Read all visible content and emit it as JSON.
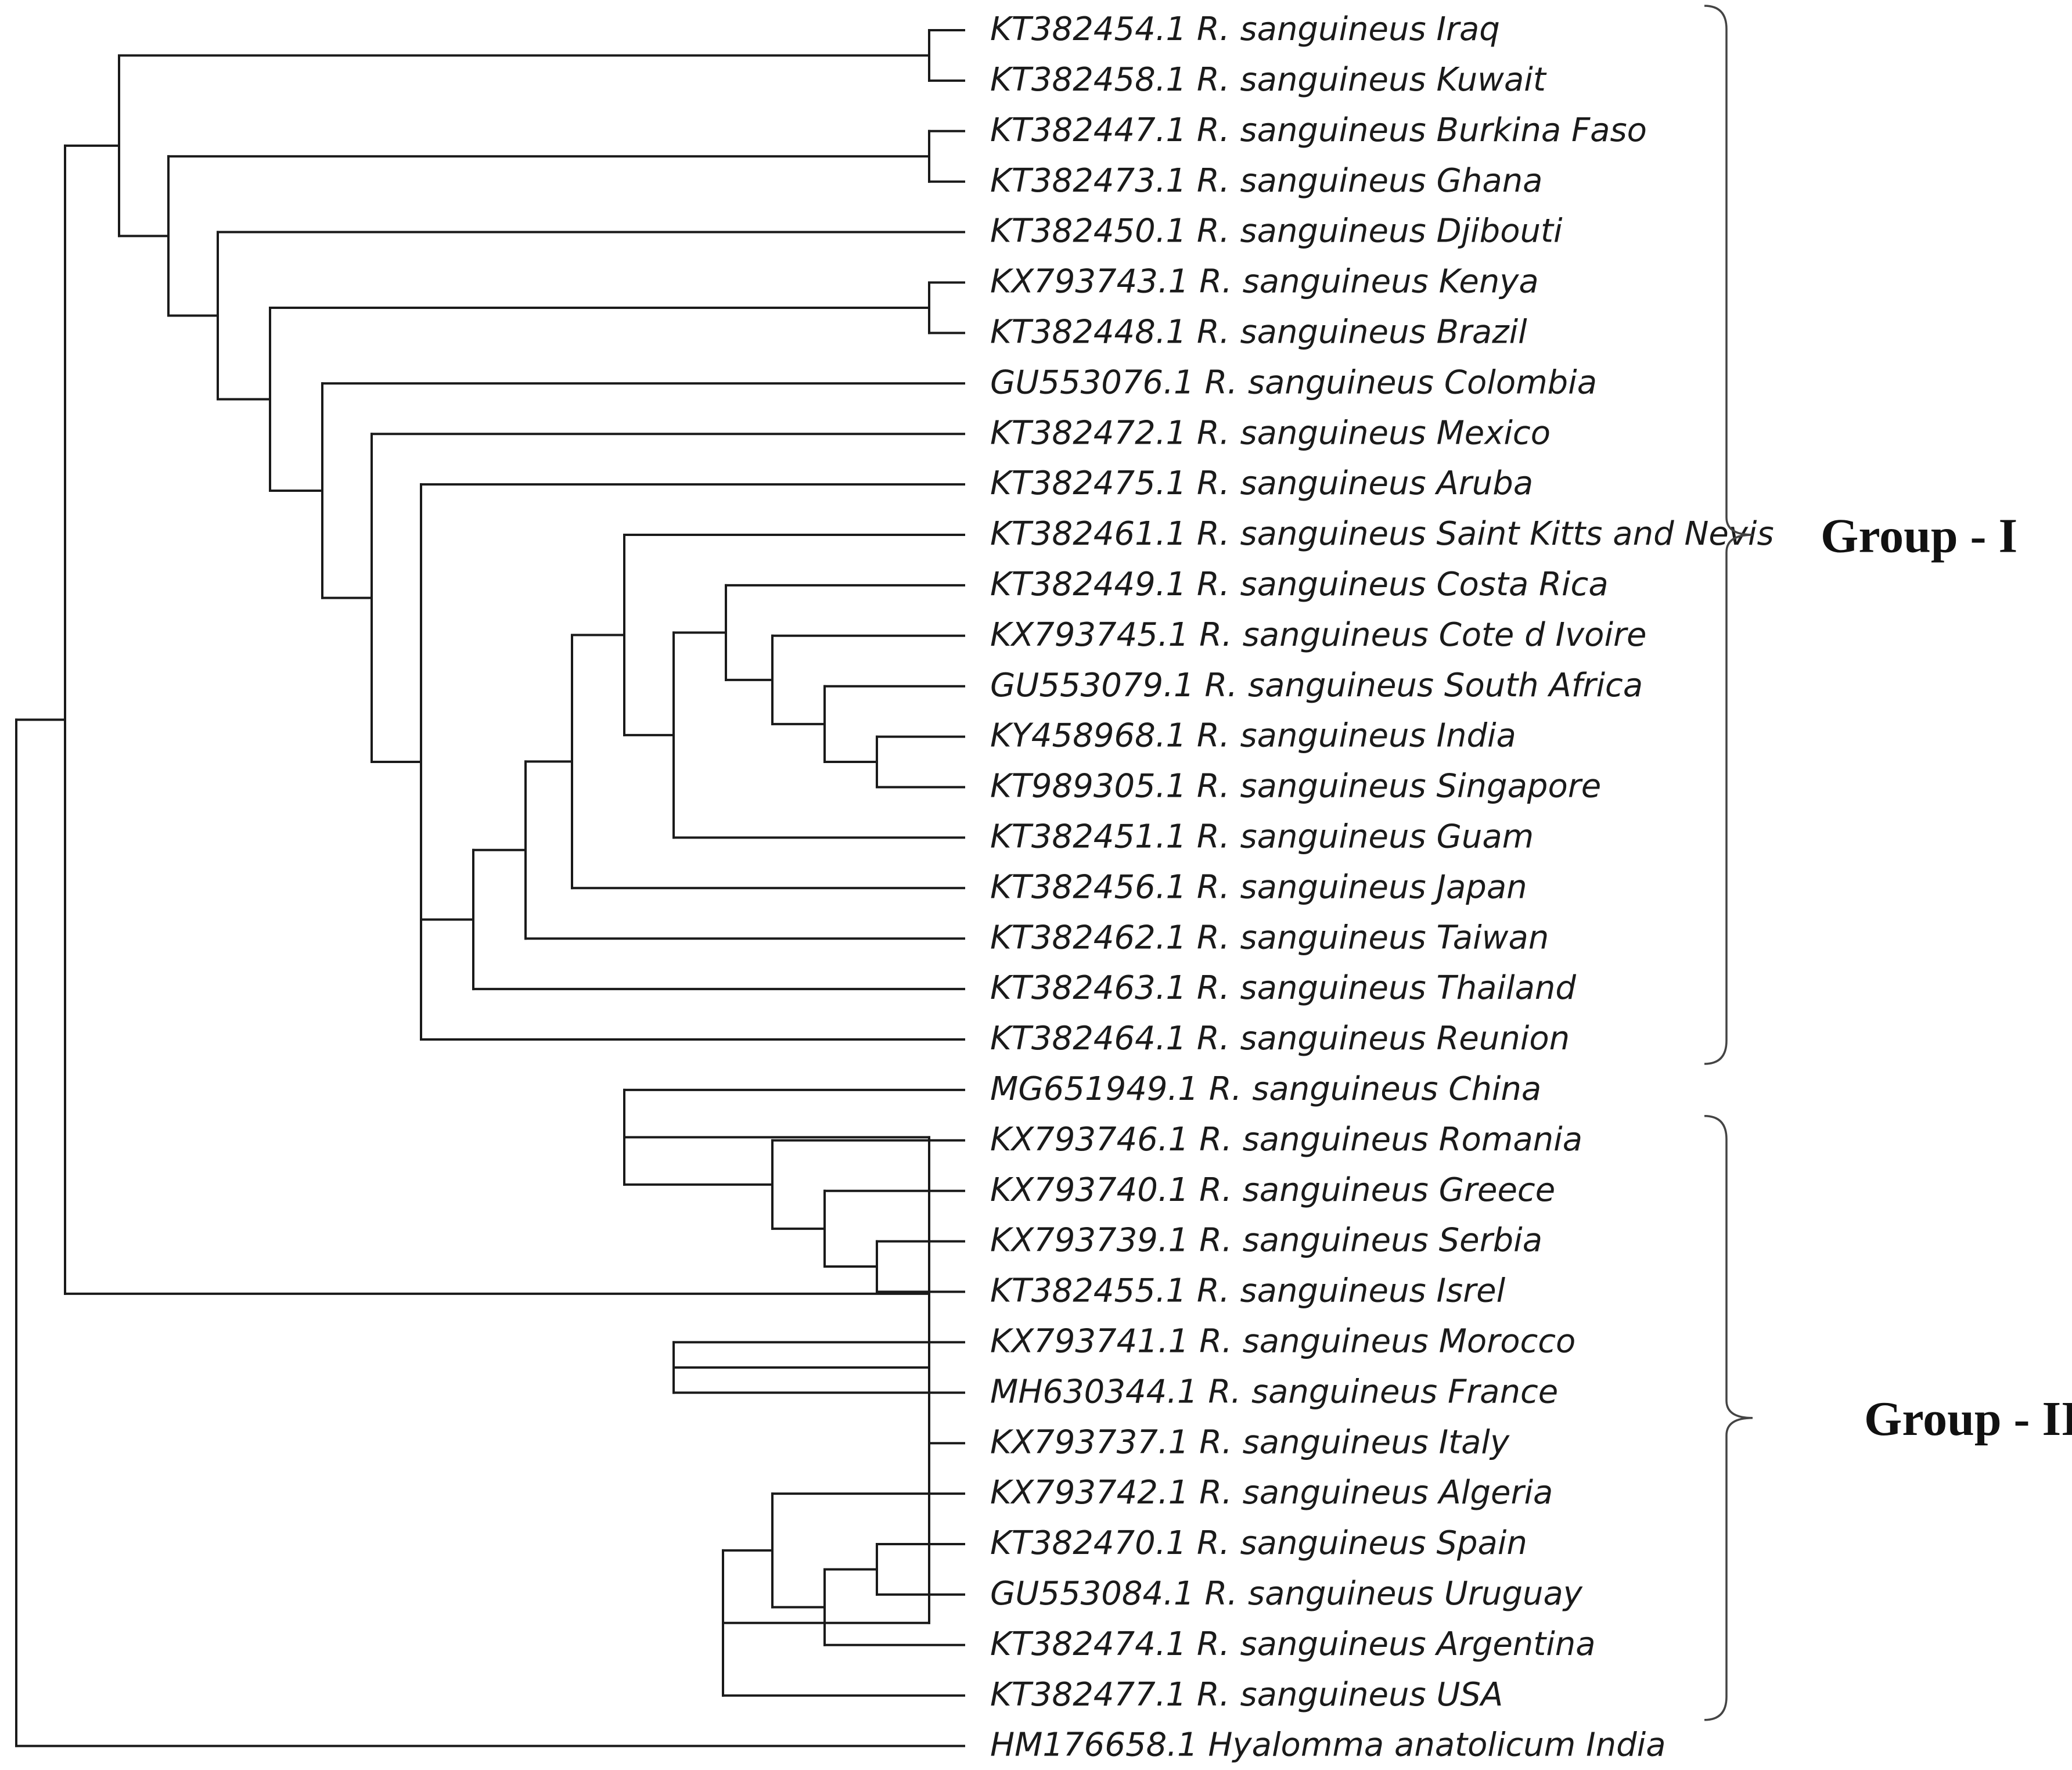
{
  "figure": {
    "type": "phylogenetic-tree",
    "taxa": [
      "KT382454.1 R. sanguineus Iraq",
      "KT382458.1 R. sanguineus Kuwait",
      "KT382447.1 R. sanguineus Burkina Faso",
      "KT382473.1 R. sanguineus Ghana",
      "KT382450.1 R. sanguineus Djibouti",
      "KX793743.1 R. sanguineus Kenya",
      "KT382448.1 R. sanguineus Brazil",
      "GU553076.1 R. sanguineus Colombia",
      "KT382472.1 R. sanguineus Mexico",
      "KT382475.1 R. sanguineus Aruba",
      "KT382461.1 R. sanguineus Saint Kitts and Nevis",
      "KT382449.1 R. sanguineus Costa Rica",
      "KX793745.1 R. sanguineus Cote d Ivoire",
      "GU553079.1 R. sanguineus South Africa",
      "KY458968.1 R. sanguineus India",
      "KT989305.1 R. sanguineus Singapore",
      "KT382451.1 R. sanguineus Guam",
      "KT382456.1 R. sanguineus Japan",
      "KT382462.1 R. sanguineus Taiwan",
      "KT382463.1 R. sanguineus Thailand",
      "KT382464.1 R. sanguineus Reunion",
      "MG651949.1 R. sanguineus China",
      "KX793746.1 R. sanguineus Romania",
      "KX793740.1 R. sanguineus Greece",
      "KX793739.1 R. sanguineus Serbia",
      "KT382455.1 R. sanguineus Isrel",
      "KX793741.1 R. sanguineus Morocco",
      "MH630344.1 R. sanguineus France",
      "KX793737.1 R. sanguineus Italy",
      "KX793742.1 R. sanguineus Algeria",
      "KT382470.1 R. sanguineus Spain",
      "GU553084.1 R. sanguineus Uruguay",
      "KT382474.1 R. sanguineus Argentina",
      "KT382477.1 R. sanguineus USA",
      "HM176658.1 Hyalomma anatolicum India"
    ],
    "groups": [
      {
        "label": "Group - I",
        "first_taxon": 0,
        "last_taxon": 20
      },
      {
        "label": "Group - II",
        "first_taxon": 22,
        "last_taxon": 33
      }
    ],
    "topology": {
      "children": [
        {
          "children": [
            {
              "children": [
                {
                  "children": [
                    {
                      "leaf": 0
                    },
                    {
                      "leaf": 1
                    }
                  ]
                },
                {
                  "children": [
                    {
                      "children": [
                        {
                          "leaf": 2
                        },
                        {
                          "leaf": 3
                        }
                      ]
                    },
                    {
                      "children": [
                        {
                          "leaf": 4
                        },
                        {
                          "children": [
                            {
                              "children": [
                                {
                                  "leaf": 5
                                },
                                {
                                  "leaf": 6
                                }
                              ]
                            },
                            {
                              "children": [
                                {
                                  "leaf": 7
                                },
                                {
                                  "children": [
                                    {
                                      "leaf": 8
                                    },
                                    {
                                      "children": [
                                        {
                                          "leaf": 9
                                        },
                                        {
                                          "children": [
                                            {
                                              "children": [
                                                {
                                                  "children": [
                                                    {
                                                      "children": [
                                                        {
                                                          "leaf": 10
                                                        },
                                                        {
                                                          "children": [
                                                            {
                                                              "children": [
                                                                {
                                                                  "leaf": 11
                                                                },
                                                                {
                                                                  "children": [
                                                                    {
                                                                      "leaf": 12
                                                                    },
                                                                    {
                                                                      "children": [
                                                                        {
                                                                          "leaf": 13
                                                                        },
                                                                        {
                                                                          "children": [
                                                                            {
                                                                              "leaf": 14
                                                                            },
                                                                            {
                                                                              "leaf": 15
                                                                            }
                                                                          ]
                                                                        }
                                                                      ]
                                                                    }
                                                                  ]
                                                                }
                                                              ]
                                                            },
                                                            {
                                                              "leaf": 16
                                                            }
                                                          ]
                                                        }
                                                      ]
                                                    },
                                                    {
                                                      "leaf": 17
                                                    }
                                                  ]
                                                },
                                                {
                                                  "leaf": 18
                                                }
                                              ]
                                            },
                                            {
                                              "leaf": 19
                                            }
                                          ]
                                        },
                                        {
                                          "leaf": 20
                                        }
                                      ]
                                    }
                                  ]
                                }
                              ]
                            }
                          ]
                        }
                      ]
                    }
                  ]
                }
              ]
            },
            {
              "children": [
                {
                  "children": [
                    {
                      "leaf": 21
                    },
                    {
                      "children": [
                        {
                          "leaf": 22
                        },
                        {
                          "children": [
                            {
                              "leaf": 23
                            },
                            {
                              "children": [
                                {
                                  "leaf": 24
                                },
                                {
                                  "leaf": 25
                                }
                              ]
                            }
                          ]
                        }
                      ]
                    }
                  ]
                },
                {
                  "children": [
                    {
                      "children": [
                        {
                          "leaf": 26
                        },
                        {
                          "leaf": 27
                        }
                      ]
                    },
                    {
                      "children": [
                        {
                          "leaf": 28
                        },
                        {
                          "children": [
                            {
                              "children": [
                                {
                                  "leaf": 29
                                },
                                {
                                  "children": [
                                    {
                                      "children": [
                                        {
                                          "leaf": 30
                                        },
                                        {
                                          "leaf": 31
                                        }
                                      ]
                                    },
                                    {
                                      "leaf": 32
                                    }
                                  ]
                                }
                              ]
                            },
                            {
                              "leaf": 33
                            }
                          ]
                        }
                      ]
                    }
                  ]
                }
              ]
            }
          ]
        },
        {
          "leaf": 34
        }
      ]
    }
  }
}
